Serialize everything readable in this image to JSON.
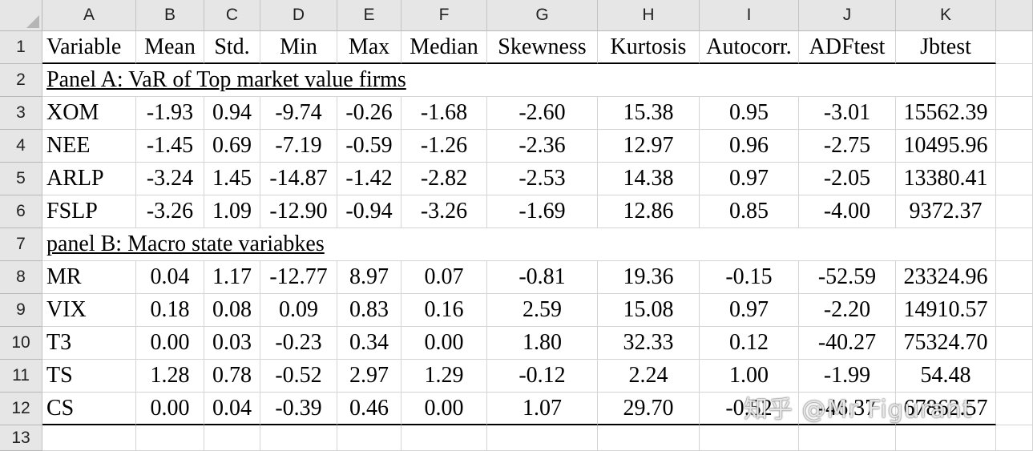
{
  "columns": [
    "A",
    "B",
    "C",
    "D",
    "E",
    "F",
    "G",
    "H",
    "I",
    "J",
    "K"
  ],
  "row_numbers": [
    "1",
    "2",
    "3",
    "4",
    "5",
    "6",
    "7",
    "8",
    "9",
    "10",
    "11",
    "12",
    "13"
  ],
  "header_row": [
    "Variable",
    "Mean",
    "Std.",
    "Min",
    "Max",
    "Median",
    "Skewness",
    "Kurtosis",
    "Autocorr.",
    "ADFtest",
    "Jbtest"
  ],
  "panel_a_title": "Panel A: VaR of Top market value firms",
  "panel_a_rows": [
    [
      "XOM",
      "-1.93",
      "0.94",
      "-9.74",
      "-0.26",
      "-1.68",
      "-2.60",
      "15.38",
      "0.95",
      "-3.01",
      "15562.39"
    ],
    [
      "NEE",
      "-1.45",
      "0.69",
      "-7.19",
      "-0.59",
      "-1.26",
      "-2.36",
      "12.97",
      "0.96",
      "-2.75",
      "10495.96"
    ],
    [
      "ARLP",
      "-3.24",
      "1.45",
      "-14.87",
      "-1.42",
      "-2.82",
      "-2.53",
      "14.38",
      "0.97",
      "-2.05",
      "13380.41"
    ],
    [
      "FSLP",
      "-3.26",
      "1.09",
      "-12.90",
      "-0.94",
      "-3.26",
      "-1.69",
      "12.86",
      "0.85",
      "-4.00",
      "9372.37"
    ]
  ],
  "panel_b_title": "panel B: Macro state variabkes",
  "panel_b_rows": [
    [
      "MR",
      "0.04",
      "1.17",
      "-12.77",
      "8.97",
      "0.07",
      "-0.81",
      "19.36",
      "-0.15",
      "-52.59",
      "23324.96"
    ],
    [
      "VIX",
      "0.18",
      "0.08",
      "0.09",
      "0.83",
      "0.16",
      "2.59",
      "15.08",
      "0.97",
      "-2.20",
      "14910.57"
    ],
    [
      "T3",
      "0.00",
      "0.03",
      "-0.23",
      "0.34",
      "0.00",
      "1.80",
      "32.33",
      "0.12",
      "-40.27",
      "75324.70"
    ],
    [
      "TS",
      "1.28",
      "0.78",
      "-0.52",
      "2.97",
      "1.29",
      "-0.12",
      "2.24",
      "1.00",
      "-1.99",
      "54.48"
    ],
    [
      "CS",
      "0.00",
      "0.04",
      "-0.39",
      "0.46",
      "0.00",
      "1.07",
      "29.70",
      "-0.52",
      "-46.37",
      "67862.57"
    ]
  ],
  "watermark": "知乎 @Mr Figurant"
}
